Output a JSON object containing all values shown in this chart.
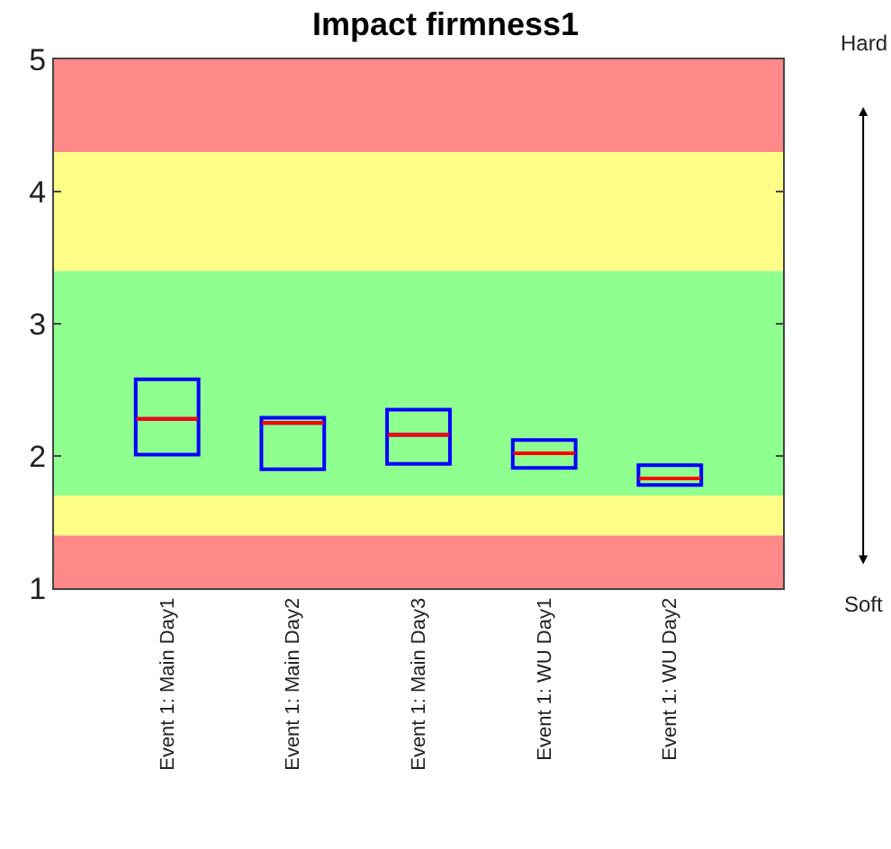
{
  "chart_data": {
    "type": "box",
    "title": "Impact firmness1",
    "categories": [
      "Event 1: Main Day1",
      "Event 1: Main Day2",
      "Event 1: Main Day3",
      "Event 1: WU Day1",
      "Event 1: WU Day2"
    ],
    "series": [
      {
        "color": "#0000ff",
        "boxes": [
          {
            "low": 2.01,
            "q1": 2.01,
            "median": 2.28,
            "q3": 2.58,
            "high": 2.58
          },
          {
            "low": 1.9,
            "q1": 1.9,
            "median": 2.25,
            "q3": 2.29,
            "high": 2.29
          },
          {
            "low": 1.94,
            "q1": 1.94,
            "median": 2.16,
            "q3": 2.35,
            "high": 2.35
          },
          {
            "low": 1.91,
            "q1": 1.91,
            "median": 2.02,
            "q3": 2.12,
            "high": 2.12
          },
          {
            "low": 1.78,
            "q1": 1.78,
            "median": 1.83,
            "q3": 1.93,
            "high": 1.93
          }
        ]
      }
    ],
    "ylim": [
      1,
      5
    ],
    "yticks": [
      1,
      2,
      3,
      4,
      5
    ],
    "grid": false,
    "bands": [
      {
        "axis": "y",
        "from": 1,
        "to": 1.4,
        "color": "#ff8888"
      },
      {
        "axis": "y",
        "from": 1.4,
        "to": 1.7,
        "color": "#ffff88"
      },
      {
        "axis": "y",
        "from": 1.7,
        "to": 3.4,
        "color": "#8fff8f"
      },
      {
        "axis": "y",
        "from": 3.4,
        "to": 4.3,
        "color": "#ffff88"
      },
      {
        "axis": "y",
        "from": 4.3,
        "to": 5,
        "color": "#ff8888"
      }
    ],
    "annotations": [
      "Hard",
      "Soft"
    ]
  }
}
